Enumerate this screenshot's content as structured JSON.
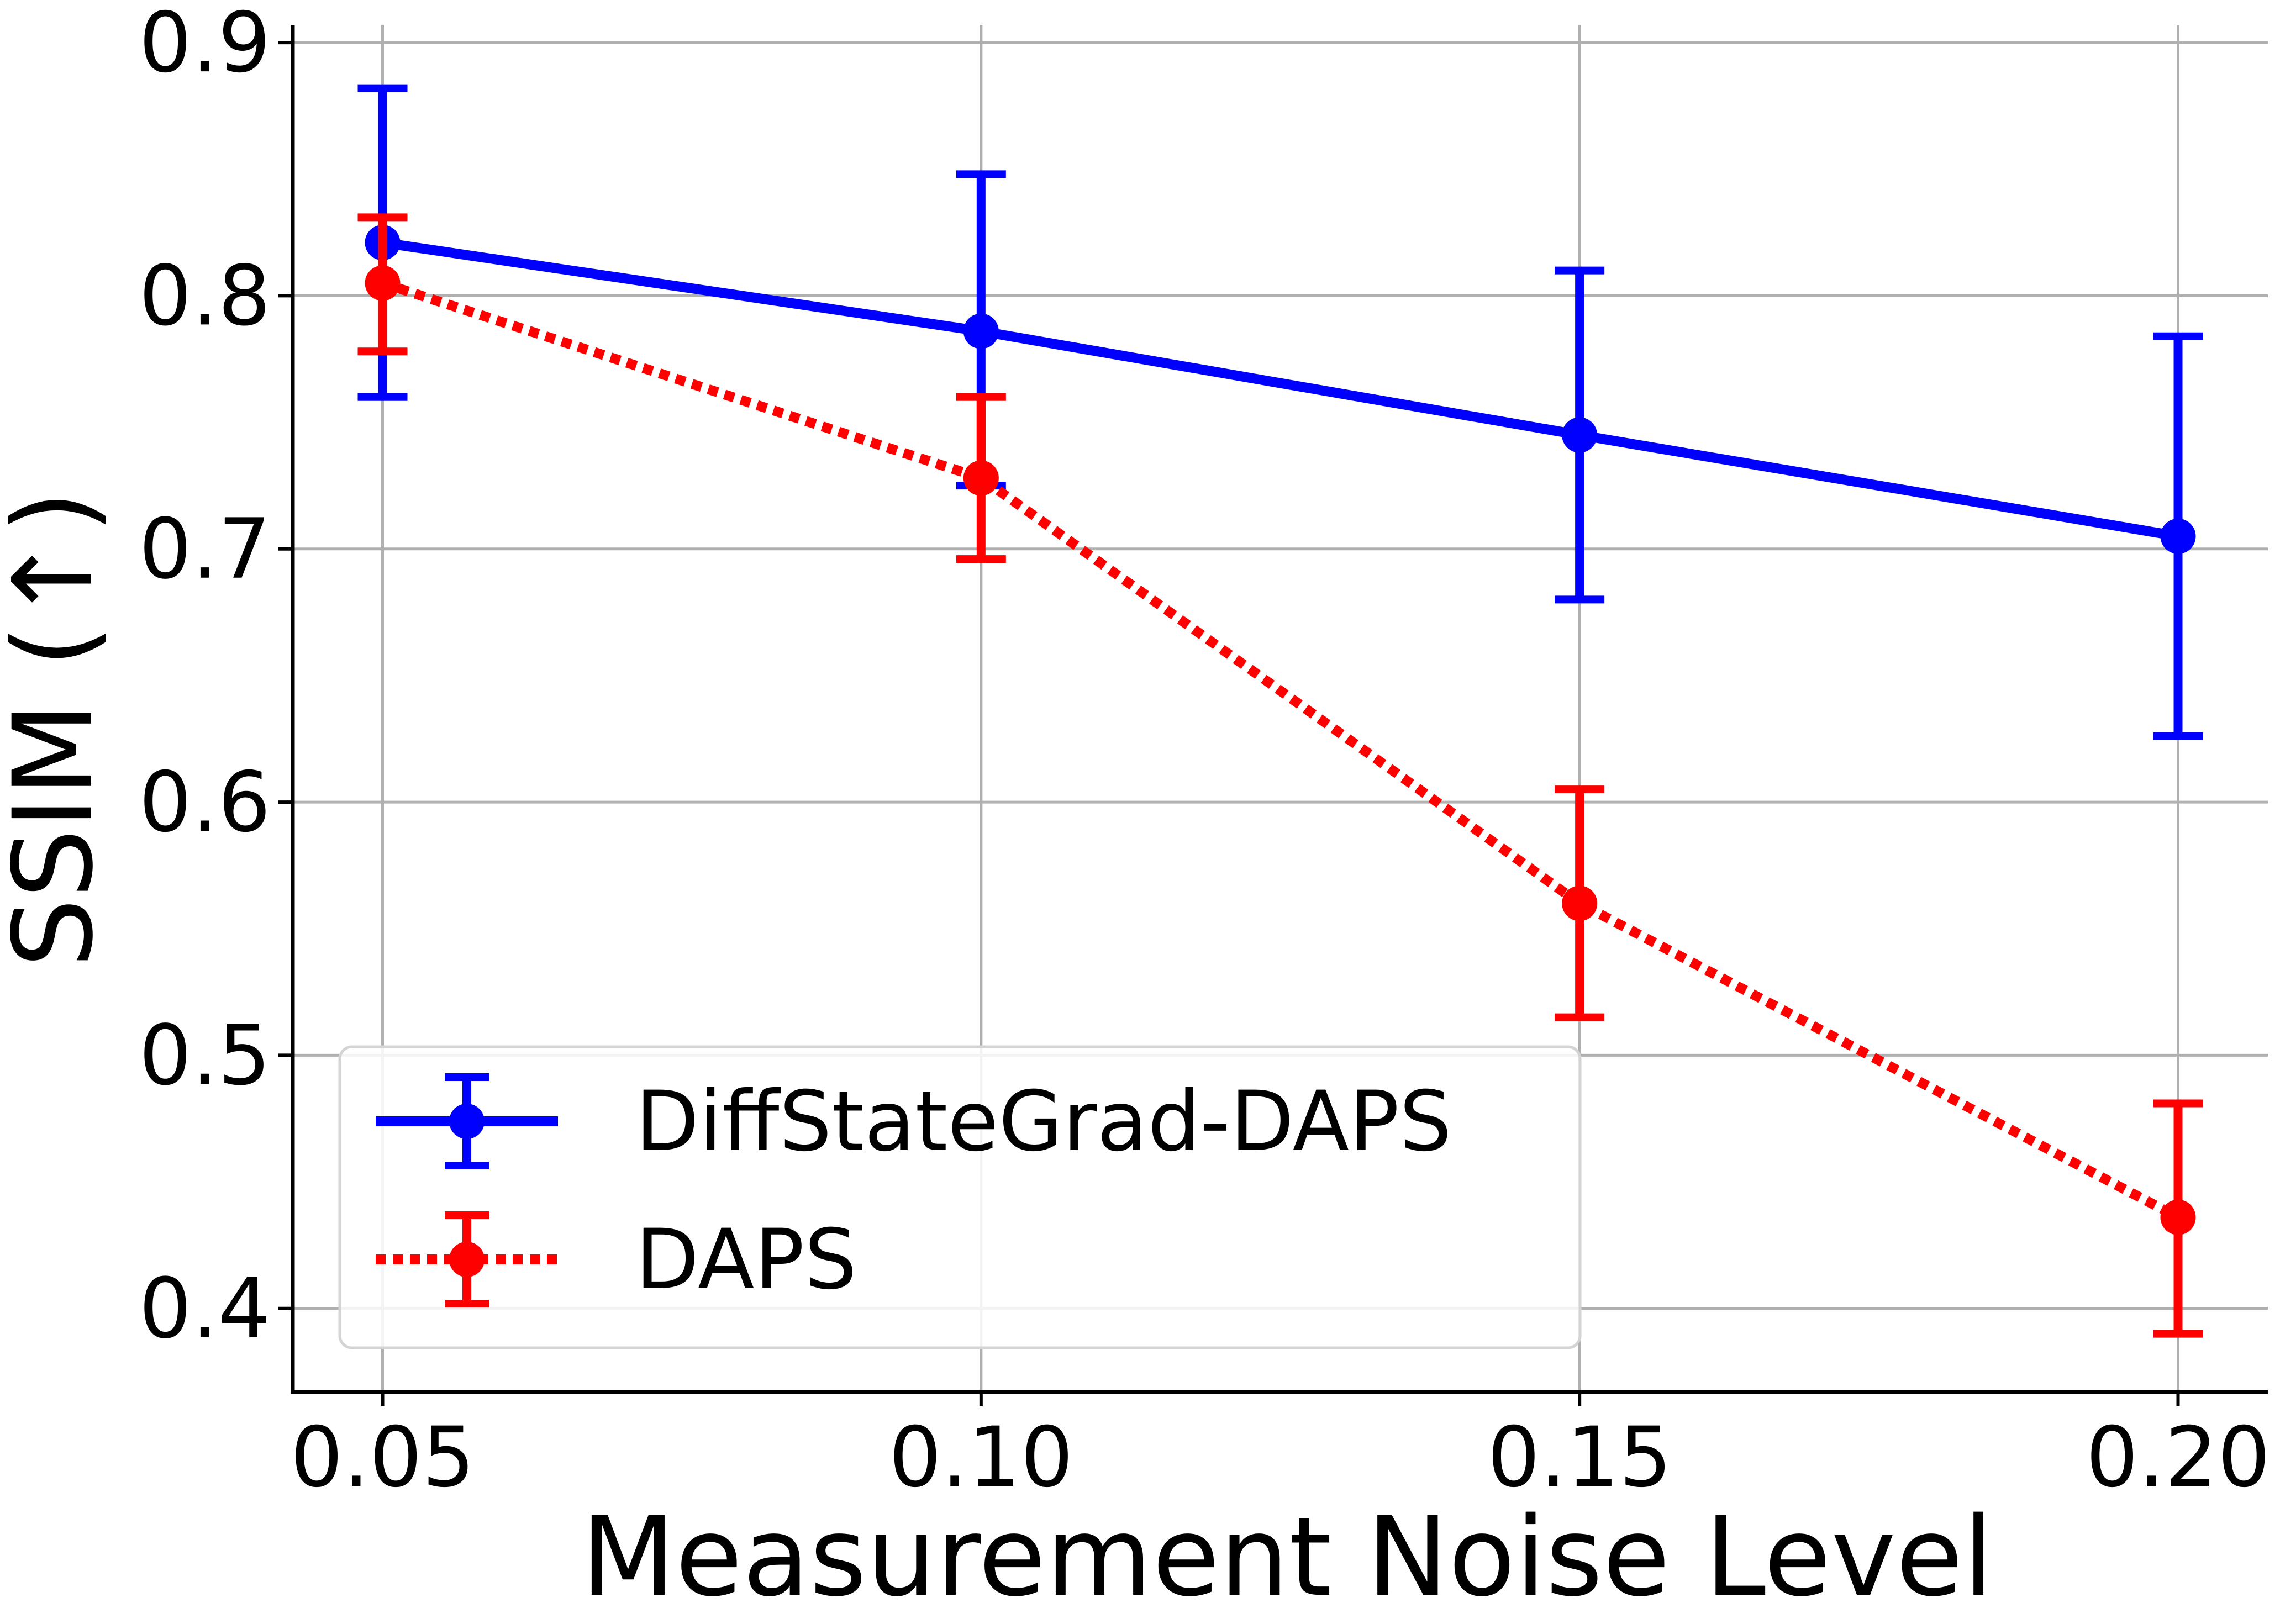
{
  "chart_data": {
    "type": "line",
    "title": "",
    "xlabel": "Measurement Noise Level",
    "ylabel": "SSIM (↑)",
    "x": [
      0.05,
      0.1,
      0.15,
      0.2
    ],
    "x_tick_labels": [
      "0.05",
      "0.10",
      "0.15",
      "0.20"
    ],
    "y_ticks": [
      0.4,
      0.5,
      0.6,
      0.7,
      0.8,
      0.9
    ],
    "y_tick_labels": [
      "0.4",
      "0.5",
      "0.6",
      "0.7",
      "0.8",
      "0.9"
    ],
    "xlim": [
      0.0425,
      0.2075
    ],
    "ylim": [
      0.367,
      0.907
    ],
    "grid": true,
    "legend_position": "lower-left",
    "series": [
      {
        "name": "DiffStateGrad-DAPS",
        "color": "#0000ff",
        "line_style": "solid",
        "values": [
          0.821,
          0.786,
          0.745,
          0.705
        ],
        "err_low": [
          0.76,
          0.725,
          0.68,
          0.626
        ],
        "err_high": [
          0.882,
          0.848,
          0.81,
          0.784
        ]
      },
      {
        "name": "DAPS",
        "color": "#ff0000",
        "line_style": "dotted",
        "values": [
          0.805,
          0.728,
          0.56,
          0.436
        ],
        "err_low": [
          0.778,
          0.696,
          0.515,
          0.39
        ],
        "err_high": [
          0.831,
          0.76,
          0.605,
          0.481
        ]
      }
    ]
  }
}
